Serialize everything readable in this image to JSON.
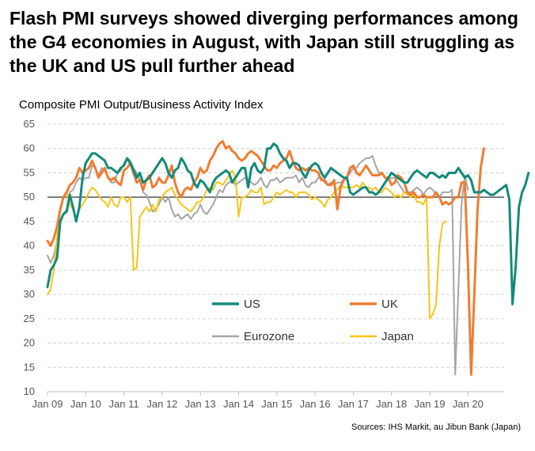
{
  "title": "Flash PMI surveys showed diverging performances among the G4 economies in August, with Japan still struggling as the UK and US pull further ahead",
  "source": "Sources: IHS Markit, au Jibun Bank (Japan)",
  "colors": {
    "US": "#138a7a",
    "UK": "#ef7d32",
    "Eurozone": "#a5a5a5",
    "Japan": "#f5c518"
  },
  "chart_data": {
    "type": "line",
    "title": "",
    "subtitle": "Composite PMI Output/Business Activity Index",
    "xlabel": "",
    "ylabel": "",
    "ylim": [
      10,
      65
    ],
    "yticks": [
      "65",
      "60",
      "55",
      "50",
      "45",
      "40",
      "35",
      "30",
      "25",
      "20",
      "15",
      "10"
    ],
    "xticks": [
      "Jan 09",
      "Jan 10",
      "Jan 11",
      "Jan 12",
      "Jan 13",
      "Jan 14",
      "Jan 15",
      "Jan 16",
      "Jan 17",
      "Jan 18",
      "Jan 19",
      "Jan 20"
    ],
    "grid": "horizontal dashed",
    "reference_line": 50,
    "legend_position": "inside-lower",
    "x_start": "Jan 2009",
    "x_end": "Aug 2020",
    "series": [
      {
        "name": "US",
        "values": [
          31.5,
          35,
          36,
          37.5,
          45,
          46.5,
          47,
          50.5,
          48,
          45,
          48,
          54,
          57,
          58,
          59,
          59,
          58.5,
          58,
          57.5,
          56,
          56,
          55.5,
          55,
          56,
          56.5,
          58,
          57,
          55.5,
          54,
          55,
          53,
          53.5,
          54,
          55,
          56,
          57,
          58,
          57,
          55,
          54,
          55.5,
          56,
          58,
          57,
          55.5,
          55,
          53,
          52,
          53.5,
          53,
          52,
          51,
          53,
          54,
          54.5,
          55,
          55.5,
          55,
          53,
          54,
          55,
          56,
          56,
          52,
          56,
          57,
          55.5,
          55,
          56,
          60,
          60,
          61,
          60.5,
          59,
          58,
          57.5,
          56,
          57,
          57,
          56.5,
          55,
          54,
          55.5,
          56.5,
          57,
          56.5,
          55,
          54,
          55,
          56,
          55.5,
          55,
          54.5,
          54,
          54,
          51,
          50.5,
          51,
          51.5,
          52,
          52,
          51,
          51,
          50.5,
          51,
          52,
          53,
          54,
          55,
          54.5,
          54,
          53.5,
          53,
          53,
          54,
          55,
          55.5,
          55,
          54.5,
          54,
          55,
          55,
          54.5,
          54,
          54.5,
          54,
          55,
          55,
          55,
          56,
          55,
          54,
          54.5,
          53.5,
          51,
          51,
          51,
          51.5,
          51,
          50.5,
          50.5,
          51,
          51.5,
          52,
          52.5,
          49.5,
          28,
          36,
          48,
          51,
          52.5,
          55
        ],
        "stroke_width": 3
      },
      {
        "name": "UK",
        "values": [
          41,
          40,
          41.5,
          44,
          47.5,
          50,
          51,
          52.5,
          53,
          54,
          56,
          55,
          55.5,
          56,
          57.5,
          56,
          54,
          55,
          56,
          54,
          53.5,
          54,
          53,
          52.5,
          55.5,
          56,
          57,
          55,
          53,
          53.5,
          51.5,
          53.5,
          54.5,
          52,
          52.5,
          54,
          53,
          53,
          54.5,
          56.5,
          53,
          51,
          50,
          51.5,
          52,
          51.5,
          53,
          54,
          56,
          55,
          55.5,
          57.5,
          58.5,
          60,
          61,
          61.5,
          60,
          60.5,
          59.5,
          59,
          58,
          57.5,
          58,
          59,
          59.5,
          59,
          58.5,
          57.5,
          56.5,
          55.5,
          55.5,
          56.5,
          56,
          57,
          57.5,
          58,
          59.5,
          57.5,
          56,
          55.5,
          56,
          55.5,
          56,
          55.5,
          55.5,
          55,
          53.5,
          53.5,
          52.5,
          52.5,
          53.5,
          47.5,
          52,
          53.5,
          54,
          56,
          56.5,
          55,
          54.5,
          55.5,
          56.5,
          55.5,
          54.5,
          54.5,
          54.5,
          55,
          54,
          54,
          52.5,
          53,
          54.5,
          54,
          53,
          51,
          50.5,
          51,
          50,
          50,
          50.5,
          50,
          50,
          50,
          51,
          50,
          48.5,
          49,
          48.5,
          49,
          50,
          50,
          53,
          53,
          36,
          13.5,
          30,
          47.5,
          56,
          60
        ],
        "stroke_width": 3
      },
      {
        "name": "Eurozone",
        "values": [
          38,
          36.5,
          38,
          41,
          45,
          46.5,
          47.5,
          51,
          51.5,
          53,
          54,
          53.5,
          54,
          54,
          56.5,
          56,
          54.5,
          56,
          55.5,
          54,
          53,
          53,
          55,
          55.5,
          57,
          58,
          57.5,
          56,
          55,
          53.5,
          51,
          50.5,
          49,
          47,
          47.5,
          48.5,
          50,
          49,
          50,
          47.5,
          46,
          46.5,
          45.5,
          46,
          46.5,
          45.5,
          46.5,
          47,
          48.5,
          47,
          46.5,
          47.5,
          48.5,
          50,
          51.5,
          51,
          52.5,
          53,
          53.5,
          52.5,
          53,
          53.5,
          54,
          53.5,
          53,
          52.5,
          53,
          54,
          52.5,
          52,
          53.5,
          53.5,
          54,
          53,
          53.5,
          54,
          54,
          54,
          54.5,
          53,
          54,
          52.5,
          52,
          53,
          53,
          54,
          54,
          53,
          52.5,
          53,
          52.5,
          53,
          53,
          53.5,
          54,
          55,
          56,
          56,
          57,
          57.5,
          58,
          58,
          58.5,
          56.5,
          55,
          55,
          54,
          53.5,
          54,
          54,
          53,
          52,
          51,
          51,
          51,
          51.5,
          52,
          51.5,
          50.5,
          51.5,
          52,
          51.5,
          50.5,
          50,
          51,
          51,
          51,
          51.5,
          13.5,
          31,
          48.5,
          54.5,
          51.5
        ],
        "stroke_width": 2
      },
      {
        "name": "Japan",
        "values": [
          30,
          31,
          35,
          42,
          47,
          50,
          51,
          48.5,
          47.5,
          45.5,
          47.5,
          48.5,
          49.5,
          51,
          52,
          51.5,
          50.5,
          49.5,
          49,
          48,
          50,
          48.5,
          48,
          50,
          50,
          49,
          50,
          35,
          35.5,
          46,
          47,
          48,
          47,
          48.5,
          47,
          49.5,
          50,
          51,
          51.5,
          52,
          50.5,
          49.5,
          48.5,
          48,
          47.5,
          47,
          48,
          49,
          49,
          50,
          51.5,
          52,
          51.5,
          53,
          53,
          52.5,
          53.5,
          54.5,
          55.5,
          54,
          46,
          50,
          50,
          50.5,
          51.5,
          51,
          51,
          52,
          48.5,
          49,
          49,
          50,
          51,
          50.5,
          51,
          51.5,
          51,
          51,
          50,
          51,
          51,
          51,
          50.5,
          49.5,
          50,
          49.5,
          49,
          48,
          49.5,
          50,
          51,
          51.5,
          52.5,
          52,
          52,
          52,
          52,
          52.5,
          52,
          53,
          52,
          52,
          51.5,
          52,
          51,
          51,
          52,
          51.5,
          51,
          50,
          50.5,
          50,
          51,
          50.5,
          50,
          50.5,
          49,
          49,
          48.5,
          50,
          25,
          26,
          28,
          40,
          44.5,
          45
        ],
        "stroke_width": 2
      }
    ],
    "legend": [
      {
        "label": "US"
      },
      {
        "label": "UK"
      },
      {
        "label": "Eurozone"
      },
      {
        "label": "Japan"
      }
    ]
  }
}
